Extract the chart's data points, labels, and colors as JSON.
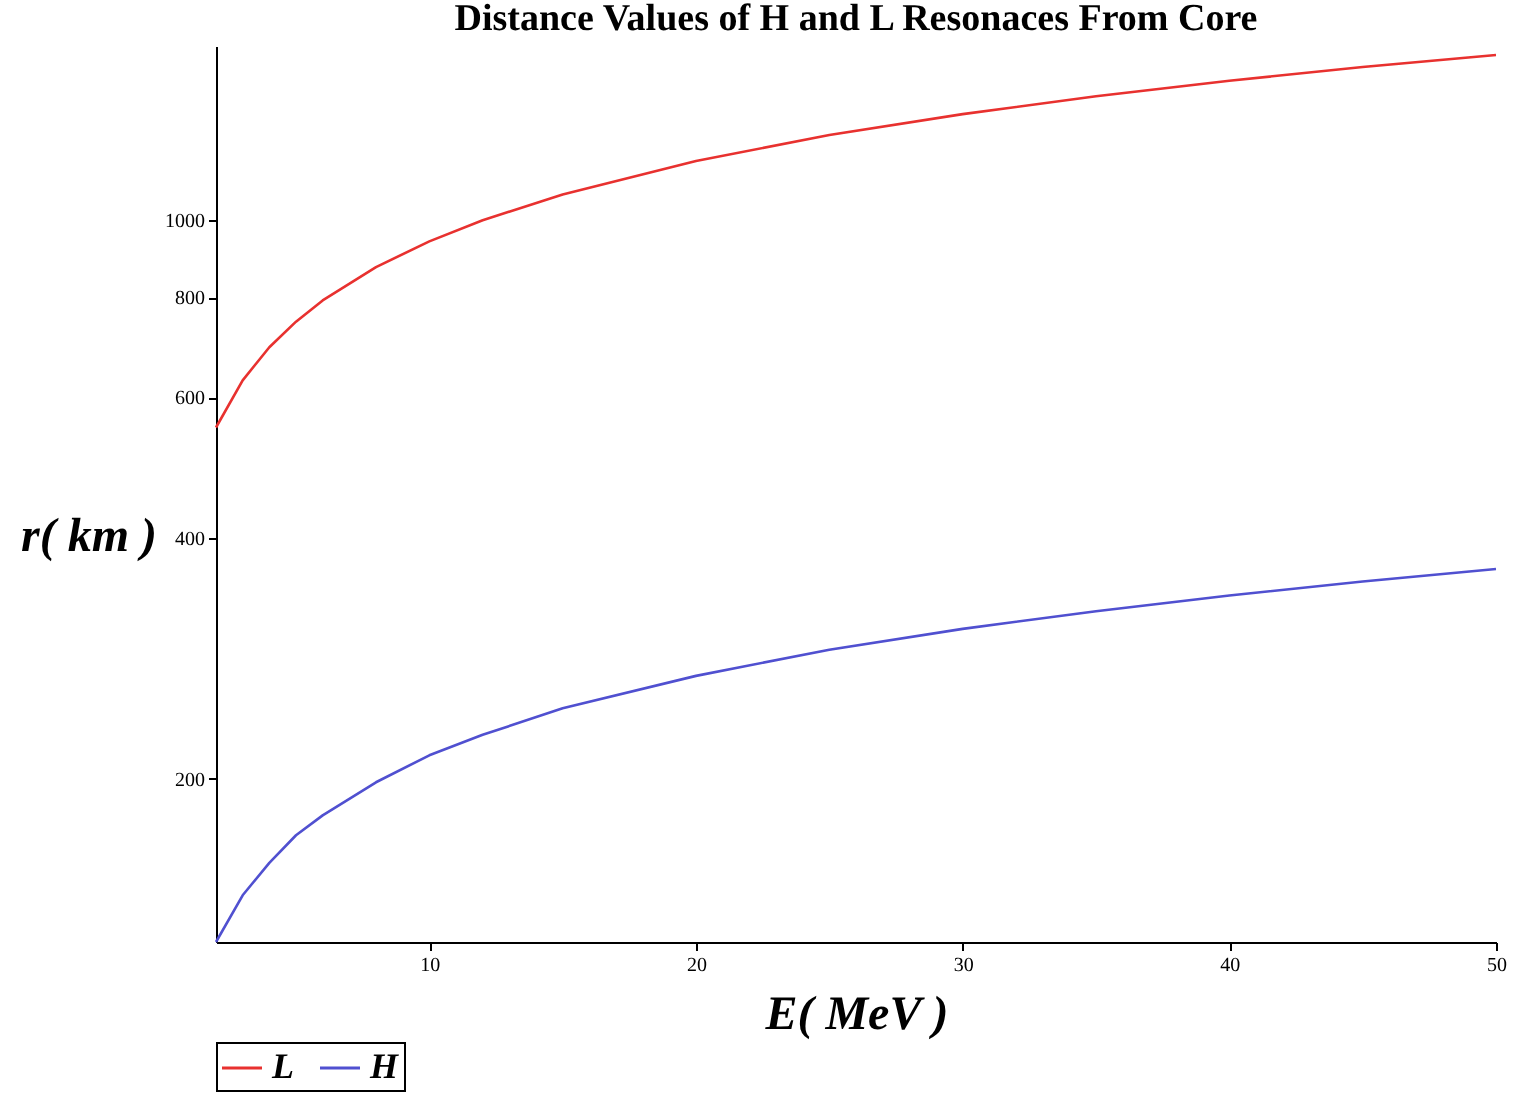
{
  "chart_data": {
    "type": "line",
    "title": "Distance Values of H and L Resonaces From Core",
    "xlabel": "E( MeV )",
    "ylabel": "r( km )",
    "x": [
      2,
      3,
      4,
      5,
      6,
      8,
      10,
      12,
      15,
      20,
      25,
      30,
      35,
      40,
      45,
      50
    ],
    "series": [
      {
        "name": "L",
        "color": "#e8312f",
        "values": [
          550,
          630,
          693,
          746,
          793,
          873,
          940,
          999,
          1076,
          1185,
          1277,
          1356,
          1428,
          1493,
          1553,
          1608
        ]
      },
      {
        "name": "H",
        "color": "#5050d0",
        "values": [
          125,
          143,
          157,
          170,
          180,
          198,
          214,
          227,
          245,
          269,
          290,
          308,
          324,
          339,
          353,
          366
        ]
      }
    ],
    "xlim": [
      2,
      50
    ],
    "xticks": [
      10,
      20,
      30,
      40,
      50
    ],
    "ylim": [
      125,
      1650
    ],
    "yticks": [
      200,
      400,
      600,
      800,
      1000
    ],
    "log": "y",
    "grid": false,
    "legend": "bottom",
    "marker": "none",
    "line_style": "solid"
  }
}
